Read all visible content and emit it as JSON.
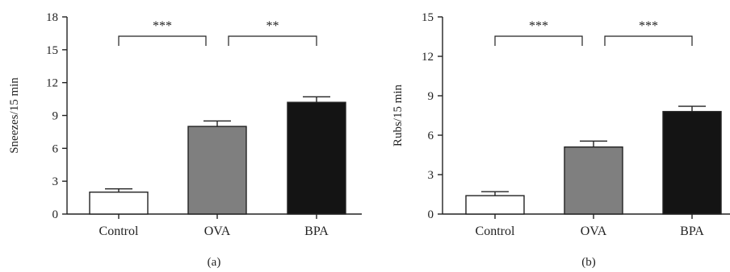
{
  "chart_data": [
    {
      "type": "bar",
      "panel_label": "(a)",
      "ylabel": "Sneezes/15 min",
      "categories": [
        "Control",
        "OVA",
        "BPA"
      ],
      "values": [
        2.0,
        8.0,
        10.2
      ],
      "error": [
        0.3,
        0.5,
        0.5
      ],
      "bar_colors": [
        "#ffffff",
        "#7f7f7f",
        "#141414"
      ],
      "ylim": [
        0,
        18
      ],
      "yticks": [
        0,
        3,
        6,
        9,
        12,
        15,
        18
      ],
      "significance": [
        {
          "from": 0,
          "to": 1,
          "label": "***"
        },
        {
          "from": 1,
          "to": 2,
          "label": "**"
        }
      ]
    },
    {
      "type": "bar",
      "panel_label": "(b)",
      "ylabel": "Rubs/15 min",
      "categories": [
        "Control",
        "OVA",
        "BPA"
      ],
      "values": [
        1.4,
        5.1,
        7.8
      ],
      "error": [
        0.3,
        0.45,
        0.4
      ],
      "bar_colors": [
        "#ffffff",
        "#7f7f7f",
        "#141414"
      ],
      "ylim": [
        0,
        15
      ],
      "yticks": [
        0,
        3,
        6,
        9,
        12,
        15
      ],
      "significance": [
        {
          "from": 0,
          "to": 1,
          "label": "***"
        },
        {
          "from": 1,
          "to": 2,
          "label": "***"
        }
      ]
    }
  ]
}
